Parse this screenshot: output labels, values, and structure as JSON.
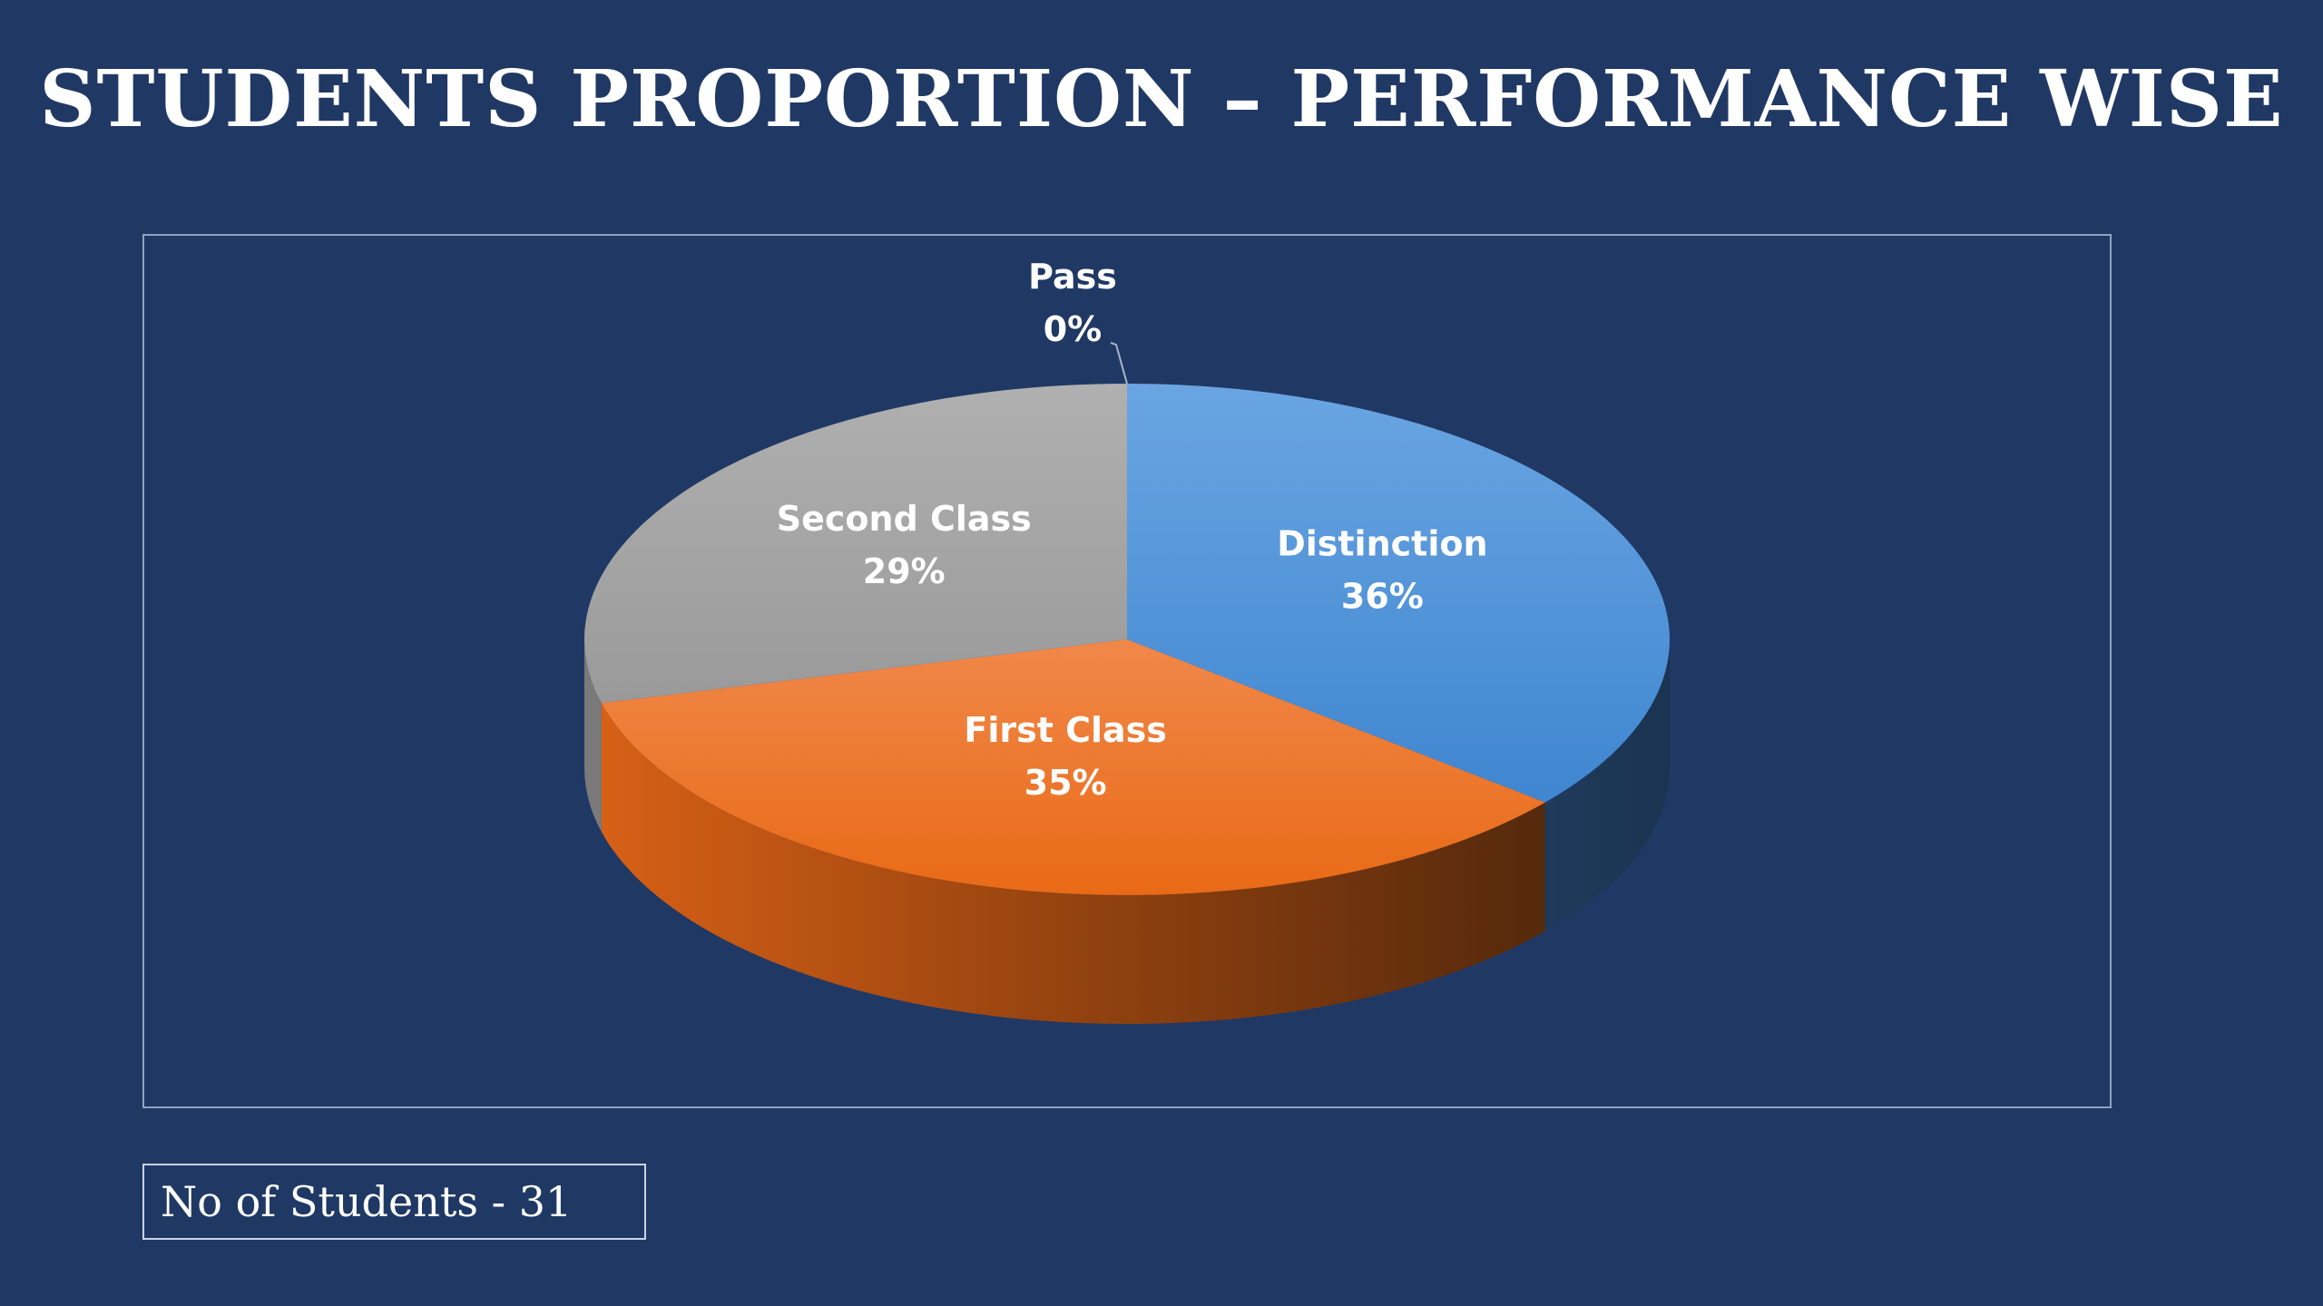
{
  "title": "STUDENTS PROPORTION – PERFORMANCE WISE",
  "footer": {
    "student_count_label": "No of Students - 31"
  },
  "chart_data": {
    "type": "pie",
    "style": "3d",
    "title": "",
    "slices": [
      {
        "name": "Distinction",
        "value": 36,
        "label": "36%",
        "color": "#4a8fd6"
      },
      {
        "name": "First Class",
        "value": 35,
        "label": "35%",
        "color": "#ee7a2b"
      },
      {
        "name": "Second Class",
        "value": 29,
        "label": "29%",
        "color": "#a6a6a6"
      },
      {
        "name": "Pass",
        "value": 0,
        "label": "0%",
        "color": "#ffc000"
      }
    ],
    "legend": "none",
    "data_labels": "category-and-percent"
  }
}
